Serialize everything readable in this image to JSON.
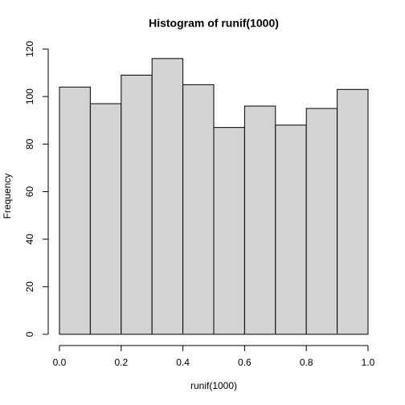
{
  "chart_data": {
    "type": "histogram",
    "title": "Histogram of runif(1000)",
    "xlabel": "runif(1000)",
    "ylabel": "Frequency",
    "bins": [
      0,
      0.1,
      0.2,
      0.3,
      0.4,
      0.5,
      0.6,
      0.7,
      0.8,
      0.9,
      1
    ],
    "values": [
      104,
      97,
      109,
      116,
      105,
      87,
      96,
      88,
      95,
      103
    ],
    "color": "#d3d3d3",
    "xlim": [
      0,
      1
    ],
    "xticks": [
      {
        "value": 0,
        "label": "0.0"
      },
      0.2,
      0.4,
      0.6,
      0.8,
      {
        "value": 1,
        "label": "1.0"
      }
    ],
    "ylim": [
      0,
      120
    ],
    "yticks": [
      0,
      20,
      40,
      60,
      80,
      100,
      120
    ]
  }
}
